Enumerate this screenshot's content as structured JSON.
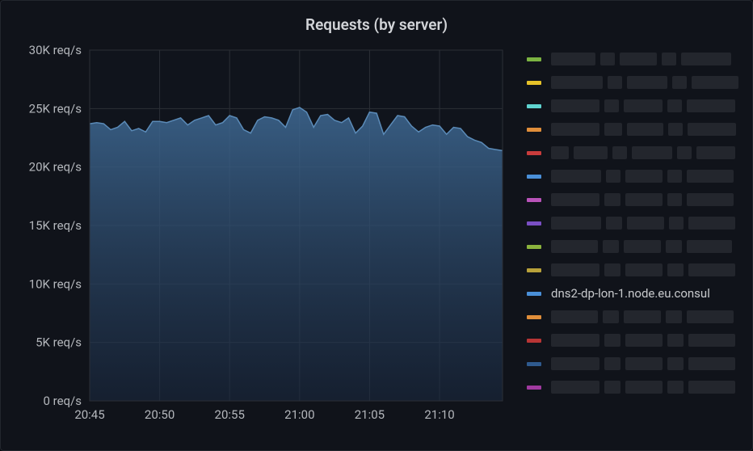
{
  "title": "Requests (by server)",
  "chart": {
    "type": "area",
    "background_color": "#10131a",
    "plot_background": "#111722",
    "grid_color": "#2b2f36",
    "axis_text_color": "#b4b7bc",
    "axis_fontsize": 15,
    "x": {
      "ticks": [
        "20:45",
        "20:50",
        "20:55",
        "21:00",
        "21:05",
        "21:10"
      ],
      "range_points": 60
    },
    "y": {
      "min": 0,
      "max": 30000,
      "tick_step": 5000,
      "tick_labels": [
        "0 req/s",
        "5K req/s",
        "10K req/s",
        "15K req/s",
        "20K req/s",
        "25K req/s",
        "30K req/s"
      ]
    },
    "series": {
      "name": "dns2-dp-lon-1.node.eu.consul",
      "stroke": "#5b8bb8",
      "stroke_width": 1.5,
      "fill_top": "#3f6a95",
      "fill_bottom": "#1a2940",
      "fill_opacity_top": 0.85,
      "fill_opacity_bottom": 0.55,
      "values": [
        23700,
        23800,
        23700,
        23200,
        23400,
        23900,
        23100,
        23300,
        23000,
        23900,
        23900,
        23800,
        24000,
        24200,
        23600,
        24000,
        24200,
        24400,
        23600,
        23800,
        24400,
        24200,
        23200,
        22900,
        24000,
        24300,
        24200,
        24000,
        23400,
        24900,
        25100,
        24700,
        23400,
        24400,
        24500,
        24000,
        23800,
        24200,
        22900,
        23500,
        24700,
        24600,
        22800,
        23600,
        24400,
        24300,
        23500,
        23000,
        23400,
        23600,
        23500,
        22800,
        23400,
        23300,
        22600,
        22300,
        22100,
        21600,
        21500,
        21400
      ]
    }
  },
  "legend": {
    "items": [
      {
        "color": "#7cb342",
        "redacted": true,
        "widths": [
          55,
          18,
          46,
          18,
          62
        ]
      },
      {
        "color": "#e6c229",
        "redacted": true,
        "widths": [
          64,
          18,
          50,
          18,
          58
        ]
      },
      {
        "color": "#5fd4d0",
        "redacted": true,
        "widths": [
          60,
          18,
          48,
          18,
          60
        ]
      },
      {
        "color": "#e08e3a",
        "redacted": true,
        "widths": [
          60,
          22,
          45,
          18,
          60
        ]
      },
      {
        "color": "#c93c3c",
        "redacted": true,
        "widths": [
          22,
          42,
          18,
          50,
          18,
          48
        ]
      },
      {
        "color": "#4a90d9",
        "redacted": true,
        "widths": [
          62,
          18,
          46,
          18,
          58
        ]
      },
      {
        "color": "#b953b9",
        "redacted": true,
        "widths": [
          60,
          20,
          46,
          18,
          58
        ]
      },
      {
        "color": "#7a4fc4",
        "redacted": true,
        "widths": [
          62,
          20,
          46,
          18,
          58
        ]
      },
      {
        "color": "#8bb33d",
        "redacted": true,
        "widths": [
          58,
          20,
          46,
          20,
          56
        ]
      },
      {
        "color": "#b8a13a",
        "redacted": true,
        "widths": [
          60,
          20,
          46,
          20,
          58
        ]
      },
      {
        "color": "#4a90d9",
        "redacted": false,
        "label": "dns2-dp-lon-1.node.eu.consul"
      },
      {
        "color": "#e08e3a",
        "redacted": true,
        "widths": [
          58,
          20,
          46,
          20,
          58
        ]
      },
      {
        "color": "#b83535",
        "redacted": true,
        "widths": [
          60,
          20,
          46,
          20,
          58
        ]
      },
      {
        "color": "#2f5a8f",
        "redacted": true,
        "widths": [
          60,
          20,
          46,
          20,
          58
        ]
      },
      {
        "color": "#a03aa0",
        "redacted": true,
        "widths": [
          60,
          20,
          46,
          20,
          58
        ]
      }
    ]
  }
}
